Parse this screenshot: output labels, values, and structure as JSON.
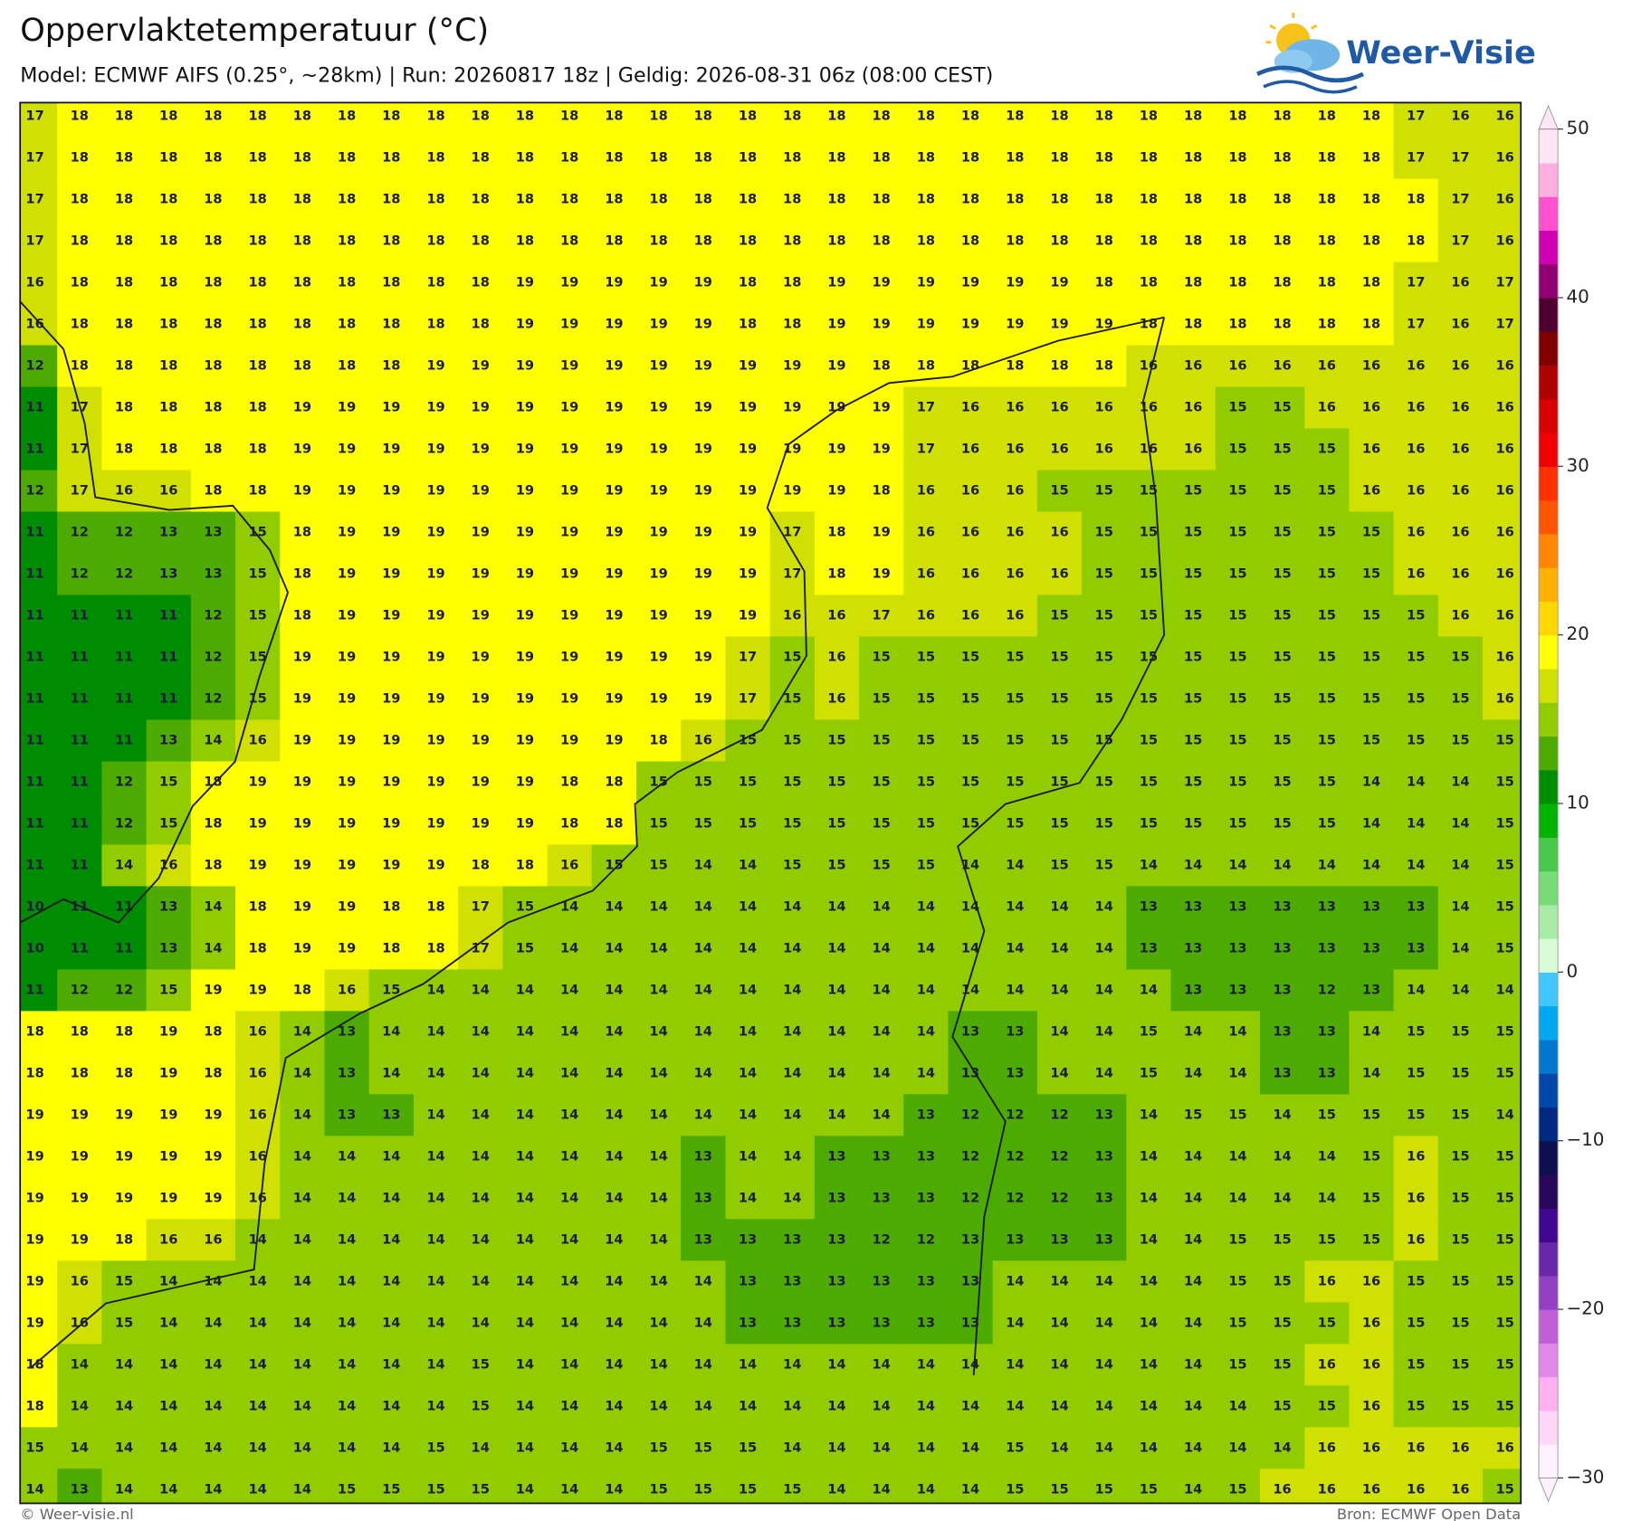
{
  "header": {
    "title": "Oppervlaktetemperatuur (°C)",
    "subtitle": "Model: ECMWF AIFS (0.25°, ~28km)  |  Run: 20260817 18z  |  Geldig: 2026-08-31 06z (08:00 CEST)"
  },
  "logo": "Weer-Visie",
  "grid": {
    "rows": [
      [
        17,
        18,
        18,
        18,
        18,
        18,
        18,
        18,
        18,
        18,
        18,
        18,
        18,
        18,
        18,
        18,
        18,
        18,
        18,
        18,
        18,
        18,
        18,
        18,
        18,
        18,
        18,
        18,
        18,
        18,
        18,
        17,
        16,
        16
      ],
      [
        17,
        18,
        18,
        18,
        18,
        18,
        18,
        18,
        18,
        18,
        18,
        18,
        18,
        18,
        18,
        18,
        18,
        18,
        18,
        18,
        18,
        18,
        18,
        18,
        18,
        18,
        18,
        18,
        18,
        18,
        18,
        17,
        17,
        16
      ],
      [
        17,
        18,
        18,
        18,
        18,
        18,
        18,
        18,
        18,
        18,
        18,
        18,
        18,
        18,
        18,
        18,
        18,
        18,
        18,
        18,
        18,
        18,
        18,
        18,
        18,
        18,
        18,
        18,
        18,
        18,
        18,
        18,
        17,
        16
      ],
      [
        17,
        18,
        18,
        18,
        18,
        18,
        18,
        18,
        18,
        18,
        18,
        18,
        18,
        18,
        18,
        18,
        18,
        18,
        18,
        18,
        18,
        18,
        18,
        18,
        18,
        18,
        18,
        18,
        18,
        18,
        18,
        18,
        17,
        16
      ],
      [
        16,
        18,
        18,
        18,
        18,
        18,
        18,
        18,
        18,
        18,
        18,
        19,
        19,
        19,
        19,
        19,
        18,
        18,
        19,
        19,
        19,
        19,
        19,
        19,
        18,
        18,
        18,
        18,
        18,
        18,
        18,
        17,
        16,
        17
      ],
      [
        16,
        18,
        18,
        18,
        18,
        18,
        18,
        18,
        18,
        18,
        18,
        19,
        19,
        19,
        19,
        19,
        18,
        18,
        19,
        19,
        19,
        19,
        19,
        19,
        19,
        18,
        18,
        18,
        18,
        18,
        18,
        17,
        16,
        17
      ],
      [
        12,
        18,
        18,
        18,
        18,
        18,
        18,
        18,
        18,
        19,
        19,
        19,
        19,
        19,
        19,
        19,
        19,
        19,
        19,
        18,
        18,
        18,
        18,
        18,
        18,
        16,
        16,
        16,
        16,
        16,
        16,
        16,
        16,
        16
      ],
      [
        11,
        17,
        18,
        18,
        18,
        18,
        19,
        19,
        19,
        19,
        19,
        19,
        19,
        19,
        19,
        19,
        19,
        19,
        19,
        19,
        17,
        16,
        16,
        16,
        16,
        16,
        16,
        15,
        15,
        16,
        16,
        16,
        16,
        16
      ],
      [
        11,
        17,
        18,
        18,
        18,
        18,
        19,
        19,
        19,
        19,
        19,
        19,
        19,
        19,
        19,
        19,
        19,
        19,
        19,
        19,
        17,
        16,
        16,
        16,
        16,
        16,
        16,
        15,
        15,
        15,
        16,
        16,
        16,
        16
      ],
      [
        12,
        17,
        16,
        16,
        18,
        18,
        19,
        19,
        19,
        19,
        19,
        19,
        19,
        19,
        19,
        19,
        19,
        19,
        19,
        18,
        16,
        16,
        16,
        15,
        15,
        15,
        15,
        15,
        15,
        15,
        16,
        16,
        16,
        16
      ],
      [
        11,
        12,
        12,
        13,
        13,
        15,
        18,
        19,
        19,
        19,
        19,
        19,
        19,
        19,
        19,
        19,
        19,
        17,
        18,
        19,
        16,
        16,
        16,
        16,
        15,
        15,
        15,
        15,
        15,
        15,
        15,
        16,
        16,
        16
      ],
      [
        11,
        12,
        12,
        13,
        13,
        15,
        18,
        19,
        19,
        19,
        19,
        19,
        19,
        19,
        19,
        19,
        19,
        17,
        18,
        19,
        16,
        16,
        16,
        16,
        15,
        15,
        15,
        15,
        15,
        15,
        15,
        16,
        16,
        16
      ],
      [
        11,
        11,
        11,
        11,
        12,
        15,
        18,
        19,
        19,
        19,
        19,
        19,
        19,
        19,
        19,
        19,
        19,
        16,
        16,
        17,
        16,
        16,
        16,
        15,
        15,
        15,
        15,
        15,
        15,
        15,
        15,
        15,
        16,
        16
      ],
      [
        11,
        11,
        11,
        11,
        12,
        15,
        19,
        19,
        19,
        19,
        19,
        19,
        19,
        19,
        19,
        19,
        17,
        15,
        16,
        15,
        15,
        15,
        15,
        15,
        15,
        15,
        15,
        15,
        15,
        15,
        15,
        15,
        15,
        16
      ],
      [
        11,
        11,
        11,
        11,
        12,
        15,
        19,
        19,
        19,
        19,
        19,
        19,
        19,
        19,
        19,
        19,
        17,
        15,
        16,
        15,
        15,
        15,
        15,
        15,
        15,
        15,
        15,
        15,
        15,
        15,
        15,
        15,
        15,
        16
      ],
      [
        11,
        11,
        11,
        13,
        14,
        16,
        19,
        19,
        19,
        19,
        19,
        19,
        19,
        19,
        18,
        16,
        15,
        15,
        15,
        15,
        15,
        15,
        15,
        15,
        15,
        15,
        15,
        15,
        15,
        15,
        15,
        15,
        15,
        15
      ],
      [
        11,
        11,
        12,
        15,
        18,
        19,
        19,
        19,
        19,
        19,
        19,
        19,
        18,
        18,
        15,
        15,
        15,
        15,
        15,
        15,
        15,
        15,
        15,
        15,
        15,
        15,
        15,
        15,
        15,
        15,
        14,
        14,
        14,
        15
      ],
      [
        11,
        11,
        12,
        15,
        18,
        19,
        19,
        19,
        19,
        19,
        19,
        19,
        18,
        18,
        15,
        15,
        15,
        15,
        15,
        15,
        15,
        15,
        15,
        15,
        15,
        15,
        15,
        15,
        15,
        15,
        14,
        14,
        14,
        15
      ],
      [
        11,
        11,
        14,
        16,
        18,
        19,
        19,
        19,
        19,
        19,
        18,
        18,
        16,
        15,
        15,
        14,
        14,
        15,
        15,
        15,
        15,
        14,
        14,
        15,
        15,
        14,
        14,
        14,
        14,
        14,
        14,
        14,
        14,
        15
      ],
      [
        10,
        11,
        11,
        13,
        14,
        18,
        19,
        19,
        18,
        18,
        17,
        15,
        14,
        14,
        14,
        14,
        14,
        14,
        14,
        14,
        14,
        14,
        14,
        14,
        14,
        13,
        13,
        13,
        13,
        13,
        13,
        13,
        14,
        15
      ],
      [
        10,
        11,
        11,
        13,
        14,
        18,
        19,
        19,
        18,
        18,
        17,
        15,
        14,
        14,
        14,
        14,
        14,
        14,
        14,
        14,
        14,
        14,
        14,
        14,
        14,
        13,
        13,
        13,
        13,
        13,
        13,
        13,
        14,
        15
      ],
      [
        11,
        12,
        12,
        15,
        19,
        19,
        18,
        16,
        15,
        14,
        14,
        14,
        14,
        14,
        14,
        14,
        14,
        14,
        14,
        14,
        14,
        14,
        14,
        14,
        14,
        14,
        13,
        13,
        13,
        12,
        13,
        14,
        14,
        14
      ],
      [
        18,
        18,
        18,
        19,
        18,
        16,
        14,
        13,
        14,
        14,
        14,
        14,
        14,
        14,
        14,
        14,
        14,
        14,
        14,
        14,
        14,
        13,
        13,
        14,
        14,
        15,
        14,
        14,
        13,
        13,
        14,
        15,
        15,
        15
      ],
      [
        18,
        18,
        18,
        19,
        18,
        16,
        14,
        13,
        14,
        14,
        14,
        14,
        14,
        14,
        14,
        14,
        14,
        14,
        14,
        14,
        14,
        13,
        13,
        14,
        14,
        15,
        14,
        14,
        13,
        13,
        14,
        15,
        15,
        15
      ],
      [
        19,
        19,
        19,
        19,
        19,
        16,
        14,
        13,
        13,
        14,
        14,
        14,
        14,
        14,
        14,
        14,
        14,
        14,
        14,
        14,
        13,
        12,
        12,
        12,
        13,
        14,
        15,
        15,
        14,
        15,
        15,
        15,
        15,
        14
      ],
      [
        19,
        19,
        19,
        19,
        19,
        16,
        14,
        14,
        14,
        14,
        14,
        14,
        14,
        14,
        14,
        13,
        14,
        14,
        13,
        13,
        13,
        12,
        12,
        12,
        13,
        14,
        14,
        14,
        14,
        14,
        15,
        16,
        15,
        15
      ],
      [
        19,
        19,
        19,
        19,
        19,
        16,
        14,
        14,
        14,
        14,
        14,
        14,
        14,
        14,
        14,
        13,
        14,
        14,
        13,
        13,
        13,
        12,
        12,
        12,
        13,
        14,
        14,
        14,
        14,
        14,
        15,
        16,
        15,
        15
      ],
      [
        19,
        19,
        18,
        16,
        16,
        14,
        14,
        14,
        14,
        14,
        14,
        14,
        14,
        14,
        14,
        13,
        13,
        13,
        13,
        12,
        12,
        13,
        13,
        13,
        13,
        14,
        14,
        15,
        15,
        15,
        15,
        16,
        15,
        15
      ],
      [
        19,
        16,
        15,
        14,
        14,
        14,
        14,
        14,
        14,
        14,
        14,
        14,
        14,
        14,
        14,
        14,
        13,
        13,
        13,
        13,
        13,
        13,
        14,
        14,
        14,
        14,
        14,
        15,
        15,
        16,
        16,
        15,
        15,
        15
      ],
      [
        19,
        16,
        15,
        14,
        14,
        14,
        14,
        14,
        14,
        14,
        14,
        14,
        14,
        14,
        14,
        14,
        13,
        13,
        13,
        13,
        13,
        13,
        14,
        14,
        14,
        14,
        14,
        15,
        15,
        15,
        16,
        15,
        15,
        15
      ],
      [
        18,
        14,
        14,
        14,
        14,
        14,
        14,
        14,
        14,
        14,
        15,
        14,
        14,
        14,
        14,
        14,
        14,
        14,
        14,
        14,
        14,
        14,
        14,
        14,
        14,
        14,
        14,
        15,
        15,
        16,
        16,
        15,
        15,
        15
      ],
      [
        18,
        14,
        14,
        14,
        14,
        14,
        14,
        14,
        14,
        14,
        15,
        14,
        14,
        14,
        14,
        14,
        14,
        14,
        14,
        14,
        14,
        14,
        14,
        14,
        14,
        14,
        14,
        14,
        15,
        15,
        16,
        15,
        15,
        15
      ],
      [
        15,
        14,
        14,
        14,
        14,
        14,
        14,
        14,
        14,
        15,
        14,
        14,
        14,
        14,
        15,
        15,
        15,
        14,
        14,
        14,
        14,
        14,
        15,
        14,
        14,
        14,
        14,
        14,
        14,
        16,
        16,
        16,
        16,
        16
      ],
      [
        14,
        13,
        14,
        14,
        14,
        14,
        14,
        15,
        15,
        15,
        15,
        14,
        14,
        14,
        15,
        15,
        15,
        15,
        14,
        14,
        14,
        14,
        15,
        15,
        15,
        15,
        14,
        15,
        16,
        16,
        16,
        16,
        16,
        15
      ]
    ]
  },
  "colorbar": {
    "lim": [
      -30,
      50
    ],
    "ticks": [
      {
        "value": -30,
        "label": "−30"
      },
      {
        "value": -20,
        "label": "−20"
      },
      {
        "value": -10,
        "label": "−10"
      },
      0,
      10,
      20,
      30,
      40,
      50
    ],
    "colors": [
      "#fff0ff",
      "#ffd8f8",
      "#ffb0f0",
      "#e088e8",
      "#c060d8",
      "#9040c0",
      "#6828a8",
      "#400890",
      "#280858",
      "#101050",
      "#002880",
      "#0048a8",
      "#0078d0",
      "#00a8f0",
      "#40c8ff",
      "#d8fcd8",
      "#a8eca8",
      "#78dc78",
      "#48c848",
      "#00b400",
      "#008c00",
      "#4caa00",
      "#90cc00",
      "#d0e000",
      "#ffff00",
      "#ffd800",
      "#ffb000",
      "#ff8800",
      "#ff5500",
      "#ff3000",
      "#f00000",
      "#d80000",
      "#b00000",
      "#800000",
      "#500030",
      "#900070",
      "#d000b0",
      "#ff50d0",
      "#ffb0e0",
      "#ffe6f5"
    ]
  },
  "footer": {
    "left": "© Weer-visie.nl",
    "right": "Bron: ECMWF Open Data"
  }
}
